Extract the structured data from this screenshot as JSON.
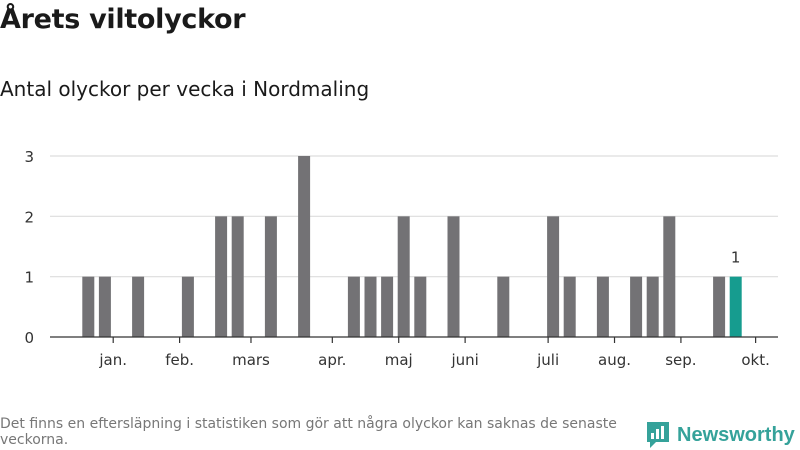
{
  "title": "Årets viltolyckor",
  "subtitle": "Antal olyckor per vecka i Nordmaling",
  "footnote": "Det finns en eftersläpning i statistiken som gör att några olyckor kan saknas de senaste veckorna.",
  "logo_text": "Newsworthy",
  "colors": {
    "bar": "#737275",
    "highlight": "#169c8f",
    "grid": "#dddddd",
    "logo": "#35a29a"
  },
  "chart_data": {
    "type": "bar",
    "title": "Årets viltolyckor",
    "subtitle": "Antal olyckor per vecka i Nordmaling",
    "xlabel": "",
    "ylabel": "",
    "ylim": [
      0,
      3
    ],
    "yticks": [
      0,
      1,
      2,
      3
    ],
    "weeks": [
      1,
      2,
      3,
      4,
      5,
      6,
      7,
      8,
      9,
      10,
      11,
      12,
      13,
      14,
      15,
      16,
      17,
      18,
      19,
      20,
      21,
      22,
      23,
      24,
      25,
      26,
      27,
      28,
      29,
      30,
      31,
      32,
      33,
      34,
      35,
      36,
      37,
      38,
      39,
      40,
      41
    ],
    "values": [
      1,
      1,
      0,
      1,
      0,
      0,
      1,
      0,
      2,
      2,
      0,
      2,
      0,
      3,
      0,
      0,
      1,
      1,
      1,
      2,
      1,
      0,
      2,
      0,
      0,
      1,
      0,
      0,
      2,
      1,
      0,
      1,
      0,
      1,
      1,
      2,
      0,
      0,
      1,
      1,
      0
    ],
    "highlight_index": 39,
    "highlight_label": "1",
    "month_labels": [
      {
        "label": "jan.",
        "at_week": 2.5
      },
      {
        "label": "feb.",
        "at_week": 6.5
      },
      {
        "label": "mars",
        "at_week": 10.8
      },
      {
        "label": "apr.",
        "at_week": 15.7
      },
      {
        "label": "maj",
        "at_week": 19.7
      },
      {
        "label": "juni",
        "at_week": 23.7
      },
      {
        "label": "juli",
        "at_week": 28.7
      },
      {
        "label": "aug.",
        "at_week": 32.7
      },
      {
        "label": "sep.",
        "at_week": 36.7
      },
      {
        "label": "okt.",
        "at_week": 41.2
      }
    ]
  }
}
